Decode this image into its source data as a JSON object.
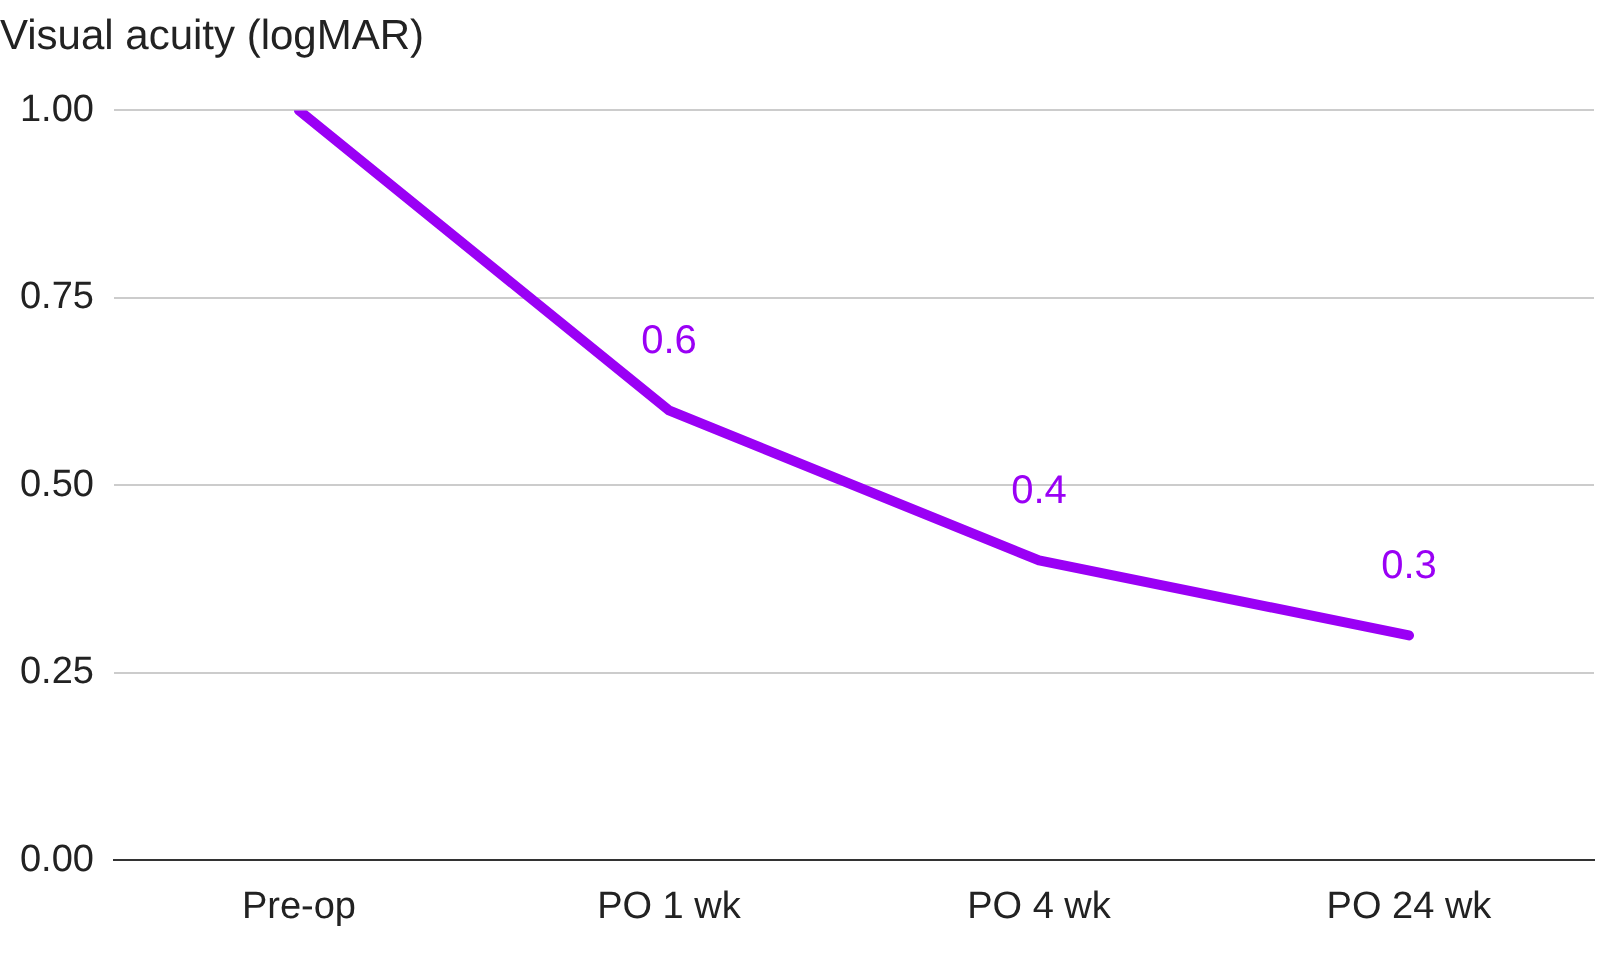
{
  "chart_data": {
    "type": "line",
    "title": "Visual acuity (logMAR)",
    "categories": [
      "Pre-op",
      "PO 1 wk",
      "PO 4 wk",
      "PO 24 wk"
    ],
    "series": [
      {
        "color": "#9a00f5",
        "values": [
          1.0,
          0.6,
          0.4,
          0.3
        ],
        "value_labels": [
          null,
          "0.6",
          "0.4",
          "0.3"
        ]
      }
    ],
    "ylim": [
      0,
      1
    ],
    "yticks": [
      {
        "value": 0,
        "label": "0.00"
      },
      {
        "value": 0.25,
        "label": "0.25"
      },
      {
        "value": 0.5,
        "label": "0.50"
      },
      {
        "value": 0.75,
        "label": "0.75"
      },
      {
        "value": 1,
        "label": "1.00"
      }
    ],
    "grid": "y",
    "legend": false,
    "marker": "none",
    "line_style": "solid"
  }
}
